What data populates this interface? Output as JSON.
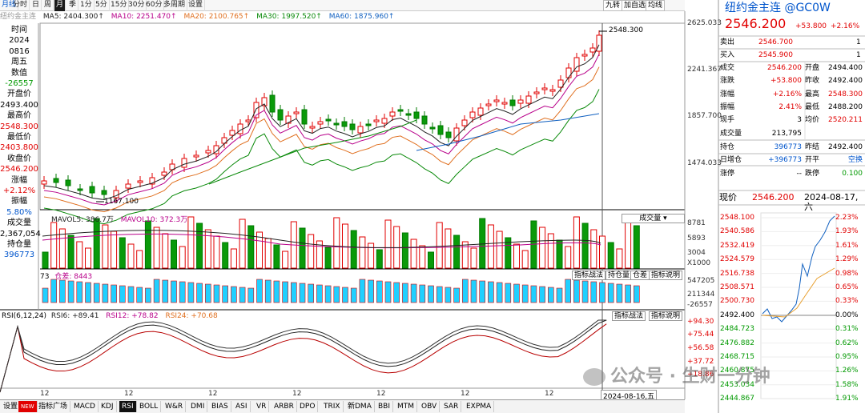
{
  "toolbar": {
    "items": [
      "月线",
      "分时",
      "日",
      "周",
      "月",
      "季",
      "1分",
      "5分",
      "15分",
      "30分",
      "60分",
      "多周期",
      "设置"
    ],
    "active_index": 4,
    "right": [
      "九转",
      "加自选",
      "均线"
    ]
  },
  "ma_line": {
    "name": "纽约金主连",
    "ma5": "MA5: 2404.300↑",
    "ma10": "MA10: 2251.470↑",
    "ma20": "MA20: 2100.765↑",
    "ma30": "MA30: 1997.520↑",
    "ma60": "MA60: 1875.960↑"
  },
  "left_panel": [
    {
      "t": "时间",
      "c": ""
    },
    {
      "t": "2024",
      "c": ""
    },
    {
      "t": "0816",
      "c": ""
    },
    {
      "t": "周五",
      "c": ""
    },
    {
      "t": "数值",
      "c": ""
    },
    {
      "t": "-26557",
      "c": "grn"
    },
    {
      "t": "开盘价",
      "c": ""
    },
    {
      "t": "2493.400",
      "c": ""
    },
    {
      "t": "最高价",
      "c": ""
    },
    {
      "t": "2548.300",
      "c": "red"
    },
    {
      "t": "最低价",
      "c": ""
    },
    {
      "t": "2403.800",
      "c": "red"
    },
    {
      "t": "收盘价",
      "c": ""
    },
    {
      "t": "2546.200",
      "c": "red"
    },
    {
      "t": "涨幅",
      "c": ""
    },
    {
      "t": "+2.12%",
      "c": "red"
    },
    {
      "t": "振幅",
      "c": ""
    },
    {
      "t": "5.80%",
      "c": "blu"
    },
    {
      "t": "成交量",
      "c": ""
    },
    {
      "t": "2,367,054",
      "c": ""
    },
    {
      "t": "持仓量",
      "c": ""
    },
    {
      "t": "396773",
      "c": "blu"
    }
  ],
  "price_axis": [
    "2625.033",
    "2241.367",
    "1857.700",
    "1474.033"
  ],
  "labels": {
    "high": "2548.300",
    "low": "1167.100"
  },
  "volume": {
    "mav5": "MAVOL5: 386.7万",
    "mav10": "MAVOL10: 372.3万",
    "btn": "成交量",
    "axis": [
      "8781",
      "5893",
      "3004",
      "X1000"
    ]
  },
  "oi": {
    "prefix": "73",
    "diff": "仓差: 8443",
    "axis": [
      "547205",
      "211344",
      "-26557"
    ],
    "buttons": [
      "指标战法",
      "持仓量",
      "仓差",
      "指标说明"
    ]
  },
  "rsi": {
    "label": "RSI(6,12,24)",
    "rsi6": "RSI6: +89.41",
    "rsi12": "RSI12: +78.82",
    "rsi24": "RSI24: +70.68",
    "axis": [
      "+94.30",
      "+75.44",
      "+56.58",
      "+37.72",
      "+18.86"
    ],
    "buttons": [
      "指标战法",
      "指标说明"
    ]
  },
  "xaxis": [
    "12",
    "12",
    "12",
    "12",
    "12",
    "12",
    "12"
  ],
  "date_label": "2024-08-16,五",
  "tabs": [
    "设置",
    "NEW",
    "指标广场",
    "MACD",
    "KDJ",
    "RSI",
    "BOLL",
    "W&R",
    "DMI",
    "BIAS",
    "ASI",
    "VR",
    "ARBR",
    "DPO",
    "TRIX",
    "新DMA",
    "BBI",
    "MTM",
    "OBV",
    "SAR",
    "EXPMA"
  ],
  "right": {
    "title": "纽约金主连 @GC0W",
    "price": "2546.200",
    "change": "+53.800",
    "pct": "+2.16%",
    "ask": {
      "label": "卖出",
      "price": "2546.700",
      "vol": "1"
    },
    "bid": {
      "label": "买入",
      "price": "2545.900",
      "vol": "1"
    },
    "rows": [
      [
        "成交",
        "2546.200",
        "开盘",
        "2494.400"
      ],
      [
        "涨跌",
        "+53.800",
        "昨收",
        "2492.400"
      ],
      [
        "涨幅",
        "+2.16%",
        "最高",
        "2548.300"
      ],
      [
        "振幅",
        "2.41%",
        "最低",
        "2488.200"
      ],
      [
        "现手",
        "3",
        "均价",
        "2520.211"
      ],
      [
        "成交量",
        "213,795",
        "",
        ""
      ]
    ],
    "rows2": [
      [
        "持仓",
        "396773",
        "昨结",
        "2492.400"
      ],
      [
        "日增仓",
        "+396773",
        "开平",
        "空换"
      ],
      [
        "涨停",
        "--",
        "跌停",
        "0.100"
      ]
    ],
    "mini": {
      "label": "现价",
      "price": "2546.200",
      "date": "2024-08-17,六"
    },
    "mini_left": [
      "2548.100",
      "2540.586",
      "2532.419",
      "2524.579",
      "2516.738",
      "2508.571",
      "2500.730",
      "2492.400",
      "2484.723",
      "2476.882",
      "2468.715",
      "2460.875",
      "2453.034",
      "2444.867"
    ],
    "mini_right": [
      "2.23%",
      "1.93%",
      "1.61%",
      "1.29%",
      "0.98%",
      "0.65%",
      "0.33%",
      "0.00%",
      "0.31%",
      "0.62%",
      "0.95%",
      "1.26%",
      "1.58%",
      "1.91%"
    ]
  },
  "watermark": "公众号 · 生财一分钟"
}
